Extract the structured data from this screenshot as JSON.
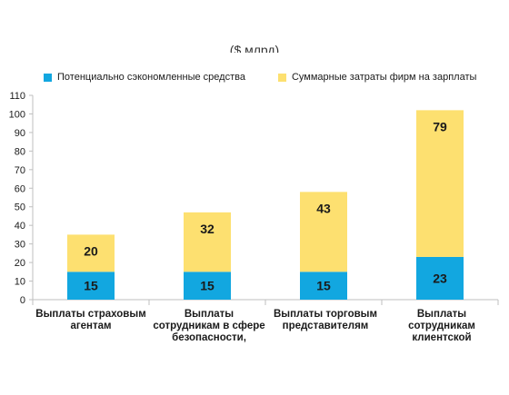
{
  "chart_data": {
    "type": "bar",
    "stacked": true,
    "title": "($ млрд)",
    "categories": [
      "Выплаты страховым агентам",
      "Выплаты сотрудникам в сфере безопасности, потребительских",
      "Выплаты торговым представителям",
      "Выплаты сотрудникам клиентской поддержки"
    ],
    "series": [
      {
        "name": "Потенциально сэкономленные средства",
        "color": "#12a7e0",
        "values": [
          15,
          15,
          15,
          23
        ]
      },
      {
        "name": "Суммарные затраты фирм на зарплаты",
        "color": "#fde070",
        "values": [
          20,
          32,
          43,
          79
        ]
      }
    ],
    "data_labels": [
      [
        "15",
        "15",
        "15",
        "23"
      ],
      [
        "20",
        "32",
        "43",
        "79"
      ]
    ],
    "stack_tops": [
      35,
      47,
      58,
      102
    ],
    "yticks": [
      0,
      10,
      20,
      30,
      40,
      50,
      60,
      70,
      80,
      90,
      100,
      110
    ],
    "ylim": [
      0,
      110
    ],
    "grid": false,
    "legend": "top"
  }
}
